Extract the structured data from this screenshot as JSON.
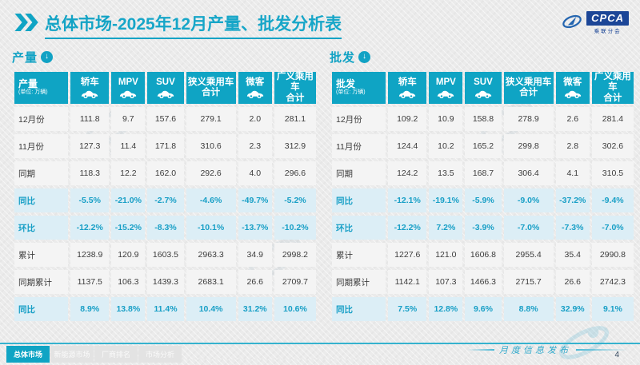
{
  "header": {
    "title_bold": "总体市场",
    "title_rest": "-2025年12月产量、批发分析表",
    "logo": {
      "brand": "CPCA",
      "sub": "乘联分会"
    }
  },
  "tables": [
    {
      "section_label": "产量",
      "corner_label": "产量",
      "unit": "(单位: 万辆)",
      "columns": [
        {
          "label": "轿车",
          "sub": "",
          "icon": "car-icon"
        },
        {
          "label": "MPV",
          "sub": "",
          "icon": "car-icon"
        },
        {
          "label": "SUV",
          "sub": "",
          "icon": "car-icon"
        },
        {
          "label": "狭义乘用车",
          "sub": "合计",
          "icon": ""
        },
        {
          "label": "微客",
          "sub": "",
          "icon": "car-icon"
        },
        {
          "label": "广义乘用车",
          "sub": "合计",
          "icon": ""
        }
      ],
      "rows": [
        {
          "label": "12月份",
          "type": "normal",
          "values": [
            "111.8",
            "9.7",
            "157.6",
            "279.1",
            "2.0",
            "281.1"
          ]
        },
        {
          "label": "11月份",
          "type": "normal",
          "values": [
            "127.3",
            "11.4",
            "171.8",
            "310.6",
            "2.3",
            "312.9"
          ]
        },
        {
          "label": "同期",
          "type": "normal",
          "values": [
            "118.3",
            "12.2",
            "162.0",
            "292.6",
            "4.0",
            "296.6"
          ]
        },
        {
          "label": "同比",
          "type": "highlight",
          "values": [
            "-5.5%",
            "-21.0%",
            "-2.7%",
            "-4.6%",
            "-49.7%",
            "-5.2%"
          ]
        },
        {
          "label": "环比",
          "type": "highlight",
          "values": [
            "-12.2%",
            "-15.2%",
            "-8.3%",
            "-10.1%",
            "-13.7%",
            "-10.2%"
          ]
        },
        {
          "label": "累计",
          "type": "normal",
          "values": [
            "1238.9",
            "120.9",
            "1603.5",
            "2963.3",
            "34.9",
            "2998.2"
          ]
        },
        {
          "label": "同期累计",
          "type": "normal",
          "values": [
            "1137.5",
            "106.3",
            "1439.3",
            "2683.1",
            "26.6",
            "2709.7"
          ]
        },
        {
          "label": "同比",
          "type": "highlight",
          "values": [
            "8.9%",
            "13.8%",
            "11.4%",
            "10.4%",
            "31.2%",
            "10.6%"
          ]
        }
      ]
    },
    {
      "section_label": "批发",
      "corner_label": "批发",
      "unit": "(单位: 万辆)",
      "columns": [
        {
          "label": "轿车",
          "sub": "",
          "icon": "car-icon"
        },
        {
          "label": "MPV",
          "sub": "",
          "icon": "car-icon"
        },
        {
          "label": "SUV",
          "sub": "",
          "icon": "car-icon"
        },
        {
          "label": "狭义乘用车",
          "sub": "合计",
          "icon": ""
        },
        {
          "label": "微客",
          "sub": "",
          "icon": "car-icon"
        },
        {
          "label": "广义乘用车",
          "sub": "合计",
          "icon": ""
        }
      ],
      "rows": [
        {
          "label": "12月份",
          "type": "normal",
          "values": [
            "109.2",
            "10.9",
            "158.8",
            "278.9",
            "2.6",
            "281.4"
          ]
        },
        {
          "label": "11月份",
          "type": "normal",
          "values": [
            "124.4",
            "10.2",
            "165.2",
            "299.8",
            "2.8",
            "302.6"
          ]
        },
        {
          "label": "同期",
          "type": "normal",
          "values": [
            "124.2",
            "13.5",
            "168.7",
            "306.4",
            "4.1",
            "310.5"
          ]
        },
        {
          "label": "同比",
          "type": "highlight",
          "values": [
            "-12.1%",
            "-19.1%",
            "-5.9%",
            "-9.0%",
            "-37.2%",
            "-9.4%"
          ]
        },
        {
          "label": "环比",
          "type": "highlight",
          "values": [
            "-12.2%",
            "7.2%",
            "-3.9%",
            "-7.0%",
            "-7.3%",
            "-7.0%"
          ]
        },
        {
          "label": "累计",
          "type": "normal",
          "values": [
            "1227.6",
            "121.0",
            "1606.8",
            "2955.4",
            "35.4",
            "2990.8"
          ]
        },
        {
          "label": "同期累计",
          "type": "normal",
          "values": [
            "1142.1",
            "107.3",
            "1466.3",
            "2715.7",
            "26.6",
            "2742.3"
          ]
        },
        {
          "label": "同比",
          "type": "highlight",
          "values": [
            "7.5%",
            "12.8%",
            "9.6%",
            "8.8%",
            "32.9%",
            "9.1%"
          ]
        }
      ]
    }
  ],
  "footer": {
    "tabs": [
      {
        "label": "总体市场",
        "active": true
      },
      {
        "label": "新能源市场",
        "active": false
      },
      {
        "label": "厂商排名",
        "active": false
      },
      {
        "label": "市场分析",
        "active": false
      }
    ],
    "script_note": "月度信息发布",
    "page_number": "4"
  },
  "colors": {
    "teal": "#0fa4c4",
    "highlight_bg": "#dceef6",
    "highlight_text": "#189fc6",
    "logo_blue": "#1c4697"
  }
}
